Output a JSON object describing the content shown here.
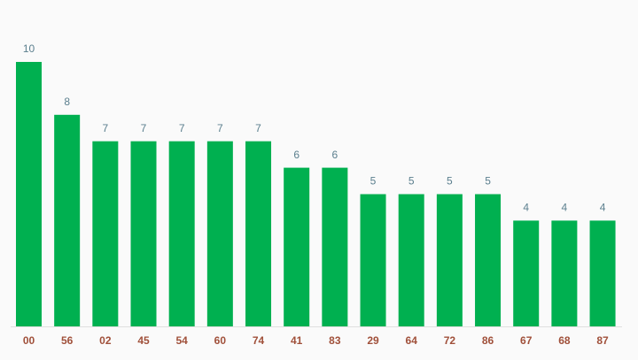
{
  "chart_data": {
    "type": "bar",
    "categories": [
      "00",
      "56",
      "02",
      "45",
      "54",
      "60",
      "74",
      "41",
      "83",
      "29",
      "64",
      "72",
      "86",
      "67",
      "68",
      "87"
    ],
    "values": [
      10,
      8,
      7,
      7,
      7,
      7,
      7,
      6,
      6,
      5,
      5,
      5,
      5,
      4,
      4,
      4
    ],
    "color": "#00b050",
    "ylim": [
      0,
      10
    ]
  }
}
